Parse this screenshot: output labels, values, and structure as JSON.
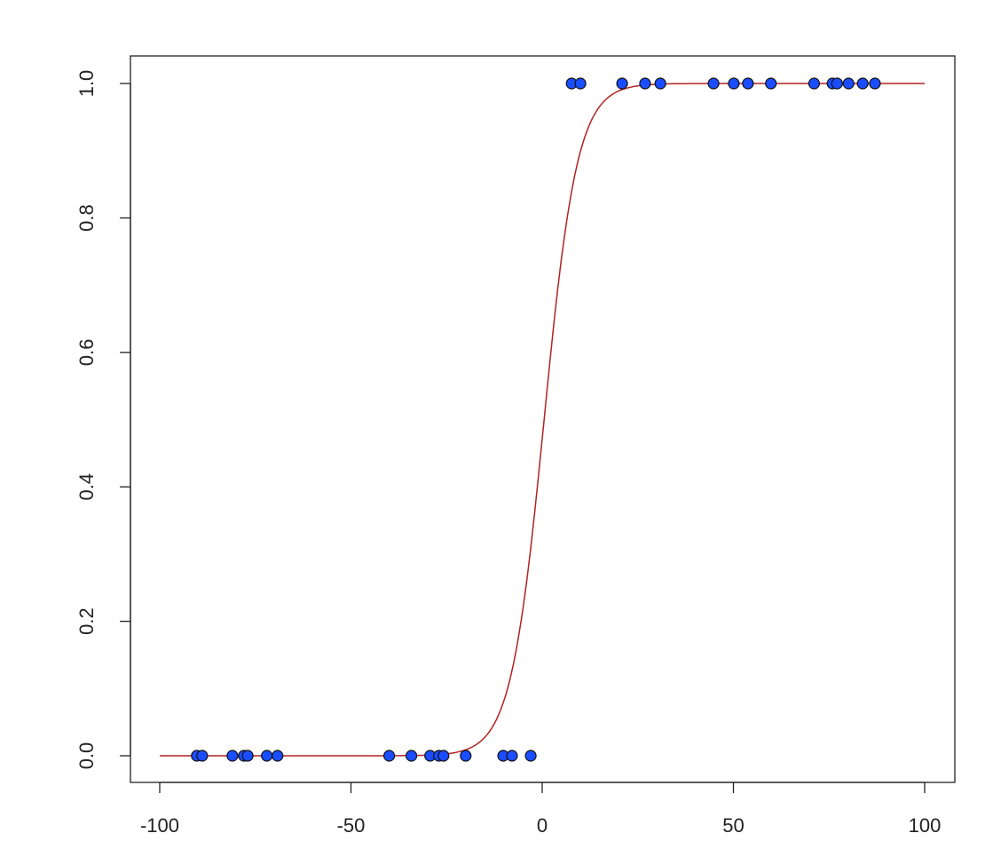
{
  "chart_data": {
    "type": "scatter",
    "title": "",
    "xlabel": "",
    "ylabel": "",
    "xlim": [
      -108,
      108
    ],
    "ylim": [
      -0.04,
      1.04
    ],
    "grid": false,
    "x_ticks": [
      -100,
      -50,
      0,
      50,
      100
    ],
    "y_ticks": [
      "0.0",
      "0.2",
      "0.4",
      "0.6",
      "0.8",
      "1.0"
    ],
    "points": {
      "color": "#1a4dff",
      "x": [
        -90.3,
        -88.9,
        -81.0,
        -78.0,
        -77.0,
        -72.0,
        -69.2,
        -40.0,
        -34.2,
        -29.3,
        -27.0,
        -25.8,
        -20.0,
        -10.2,
        -7.9,
        -3.0,
        7.7,
        10.0,
        20.9,
        26.9,
        30.9,
        44.8,
        50.1,
        53.8,
        59.8,
        71.1,
        75.9,
        77.1,
        80.1,
        83.8,
        87.0
      ],
      "y": [
        0,
        0,
        0,
        0,
        0,
        0,
        0,
        0,
        0,
        0,
        0,
        0,
        0,
        0,
        0,
        0,
        1,
        1,
        1,
        1,
        1,
        1,
        1,
        1,
        1,
        1,
        1,
        1,
        1,
        1,
        1
      ]
    },
    "curve": {
      "type": "logistic",
      "color": "#b22222",
      "midpoint": 0.5,
      "slope": 0.23,
      "x_range": [
        -100,
        100
      ]
    }
  }
}
